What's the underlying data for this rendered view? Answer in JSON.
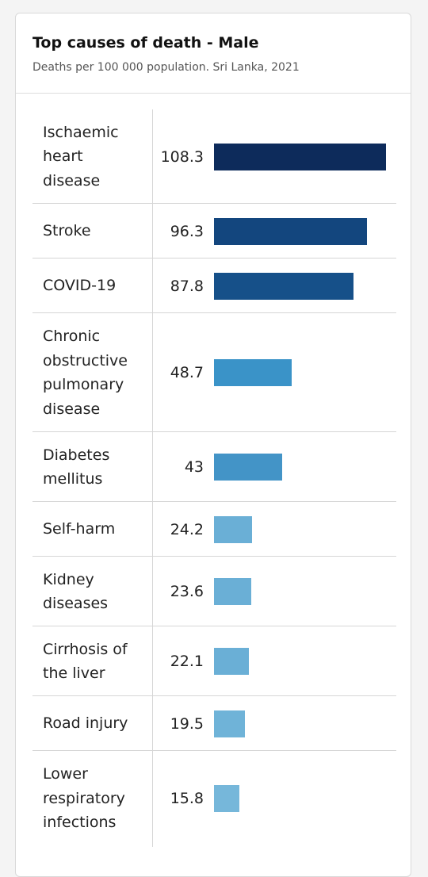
{
  "header": {
    "title": "Top causes of death - Male",
    "subtitle": "Deaths per 100 000 population. Sri Lanka, 2021"
  },
  "chart_data": {
    "type": "bar",
    "orientation": "horizontal",
    "title": "Top causes of death - Male",
    "subtitle": "Deaths per 100 000 population. Sri Lanka, 2021",
    "categories": [
      "Ischaemic heart disease",
      "Stroke",
      "COVID-19",
      "Chronic obstructive pulmonary disease",
      "Diabetes mellitus",
      "Self-harm",
      "Kidney diseases",
      "Cirrhosis of the liver",
      "Road injury",
      "Lower respiratory infections"
    ],
    "values": [
      108.3,
      96.3,
      87.8,
      48.7,
      43,
      24.2,
      23.6,
      22.1,
      19.5,
      15.8
    ],
    "value_labels": [
      "108.3",
      "96.3",
      "87.8",
      "48.7",
      "43",
      "24.2",
      "23.6",
      "22.1",
      "19.5",
      "15.8"
    ],
    "colors": [
      "#0d2b5b",
      "#13467e",
      "#165089",
      "#3a93c8",
      "#4394c7",
      "#6aafd6",
      "#6aafd6",
      "#6aafd6",
      "#6fb3d8",
      "#76b7da"
    ],
    "xlim": [
      0,
      108.3
    ],
    "grid": false,
    "legend": "none"
  }
}
